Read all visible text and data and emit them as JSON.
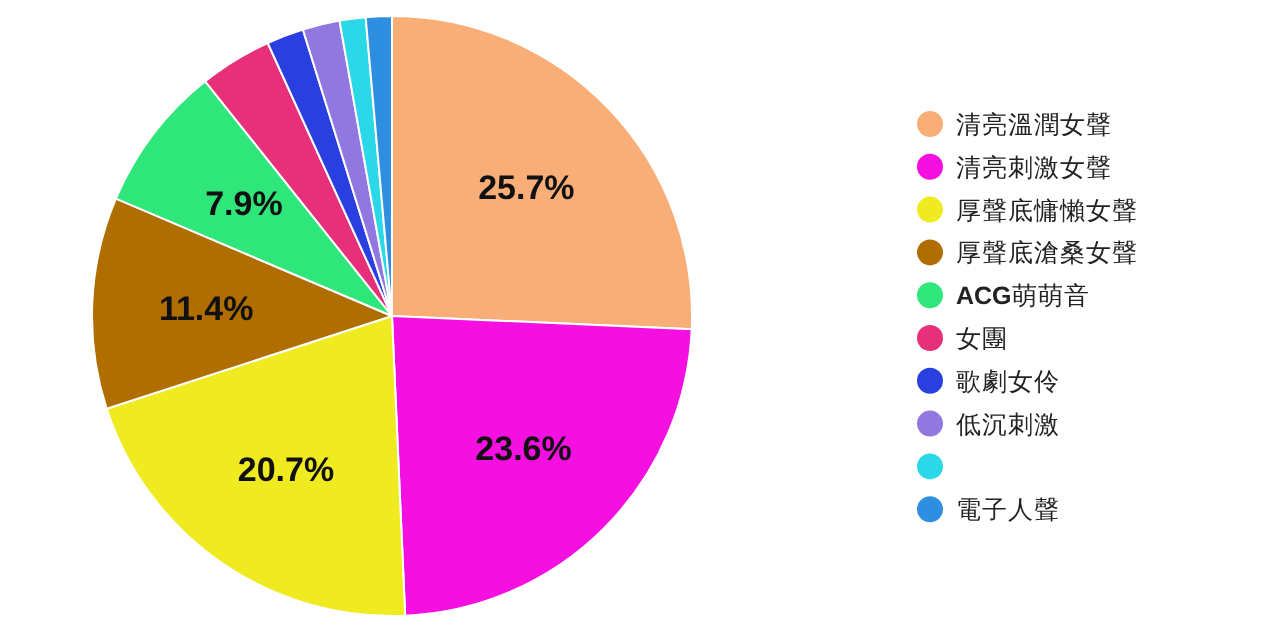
{
  "chart_data": {
    "type": "pie",
    "categories": [
      "清亮溫潤女聲",
      "清亮刺激女聲",
      "厚聲底慵懶女聲",
      "厚聲底滄桑女聲",
      "**ACG**萌萌音",
      "女團",
      "歌劇女伶",
      "低沉刺激",
      null,
      "電子人聲"
    ],
    "values": [
      25.7,
      23.6,
      20.7,
      11.4,
      7.9,
      3.9,
      2.0,
      2.0,
      1.4,
      1.4
    ],
    "value_labels": [
      "25.7%",
      "23.6%",
      "20.7%",
      "11.4%",
      "7.9%",
      null,
      null,
      null,
      null,
      null
    ],
    "colors": [
      "#f9ae78",
      "#f50fe0",
      "#f0ea20",
      "#b06e00",
      "#2fe67b",
      "#e8307a",
      "#2a3fe0",
      "#9078e0",
      "#2ad8e8",
      "#2e8fe0"
    ],
    "legend": "right"
  }
}
